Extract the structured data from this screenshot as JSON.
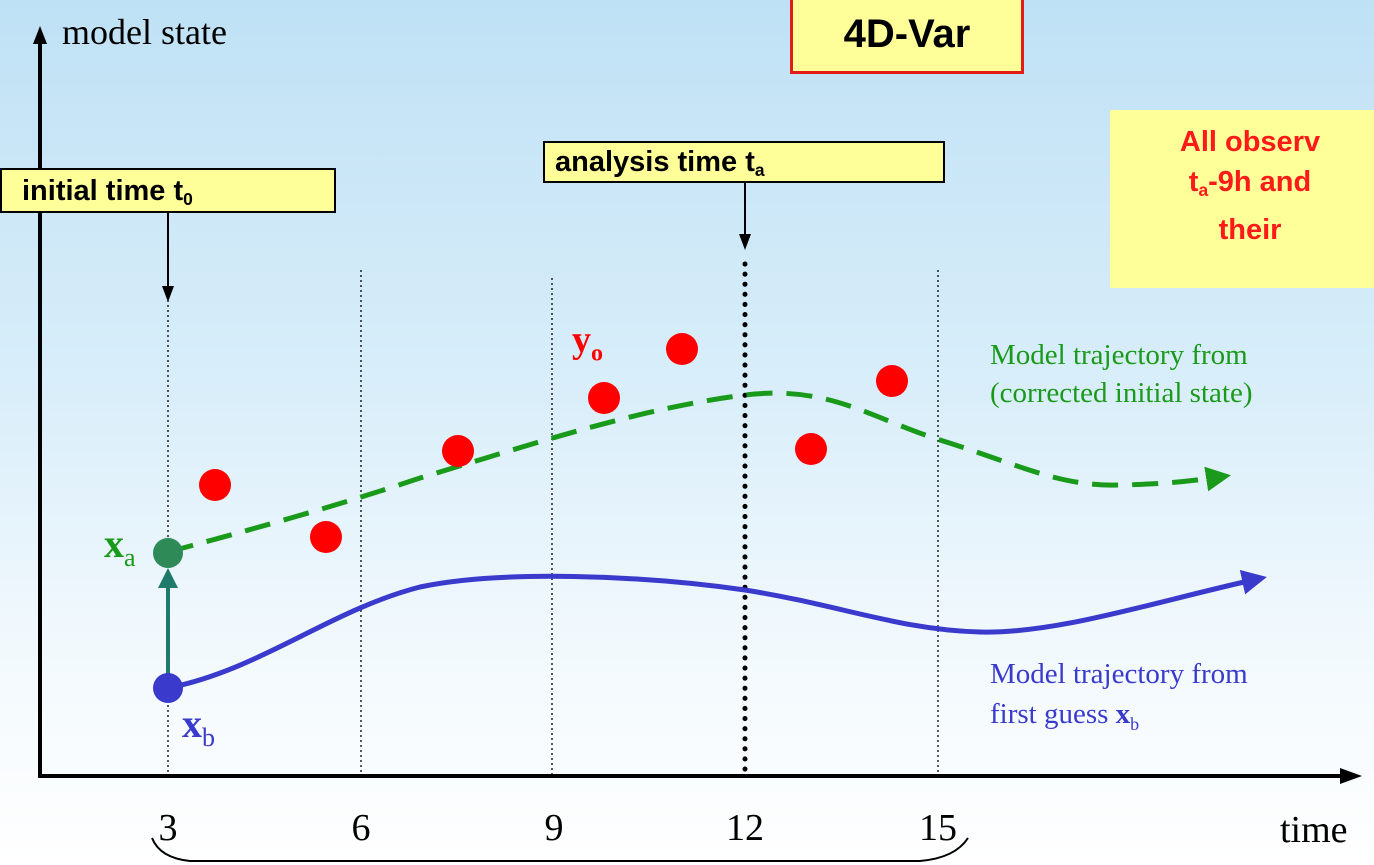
{
  "title": "4D-Var",
  "axes": {
    "y_label": "model state",
    "x_label": "time",
    "x_ticks": [
      "3",
      "6",
      "9",
      "12",
      "15"
    ]
  },
  "boxes": {
    "initial_time": {
      "text": "initial time t",
      "sub": "0"
    },
    "analysis_time": {
      "text": "analysis time t",
      "sub": "a"
    },
    "note": {
      "line1": "All observ",
      "line2_prefix": "t",
      "line2_sub": "a",
      "line2_rest": "-9h and",
      "line3": "their"
    }
  },
  "labels": {
    "xa": {
      "main": "x",
      "sub": "a"
    },
    "xb": {
      "main": "x",
      "sub": "b"
    },
    "yo": {
      "main": "y",
      "sub": "o"
    },
    "corrected_traj_line1": "Model trajectory from",
    "corrected_traj_line2": "(corrected initial state)",
    "first_guess_line1": "Model trajectory from",
    "first_guess_line2_prefix": "first guess ",
    "first_guess_line2_var": "x",
    "first_guess_line2_sub": "b"
  },
  "colors": {
    "observation": "#ff0000",
    "analysis_trajectory": "#1a9a1a",
    "first_guess_trajectory": "#3a3acc",
    "title_border": "#e31b1b",
    "box_fill": "#ffff99"
  }
}
